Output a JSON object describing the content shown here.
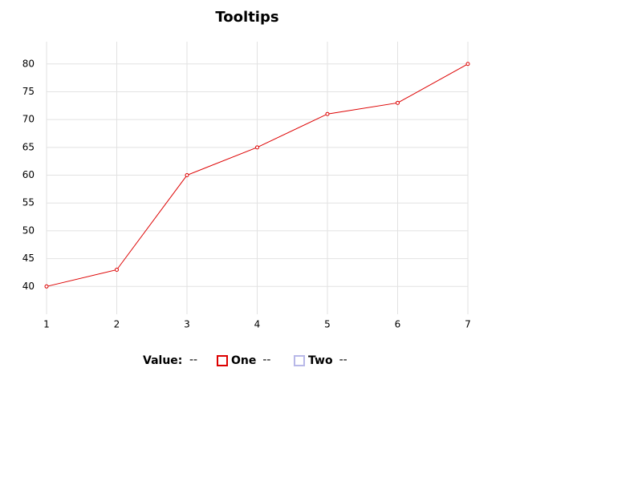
{
  "chart_data": {
    "type": "line",
    "title": "Tooltips",
    "x": [
      1,
      2,
      3,
      4,
      5,
      6,
      7
    ],
    "series": [
      {
        "name": "One",
        "color": "#dd0000",
        "values": [
          40,
          43,
          60,
          65,
          71,
          73,
          80
        ]
      }
    ],
    "hidden_series": [
      {
        "name": "Two",
        "color": "#b8b8e8"
      }
    ],
    "readout_label": "Value:",
    "readout_placeholder": "--",
    "xlim": [
      1,
      7
    ],
    "xticks": [
      1,
      2,
      3,
      4,
      5,
      6,
      7
    ],
    "ylim": [
      35,
      84
    ],
    "yticks": [
      40,
      45,
      50,
      55,
      60,
      65,
      70,
      75,
      80
    ],
    "grid": true
  }
}
